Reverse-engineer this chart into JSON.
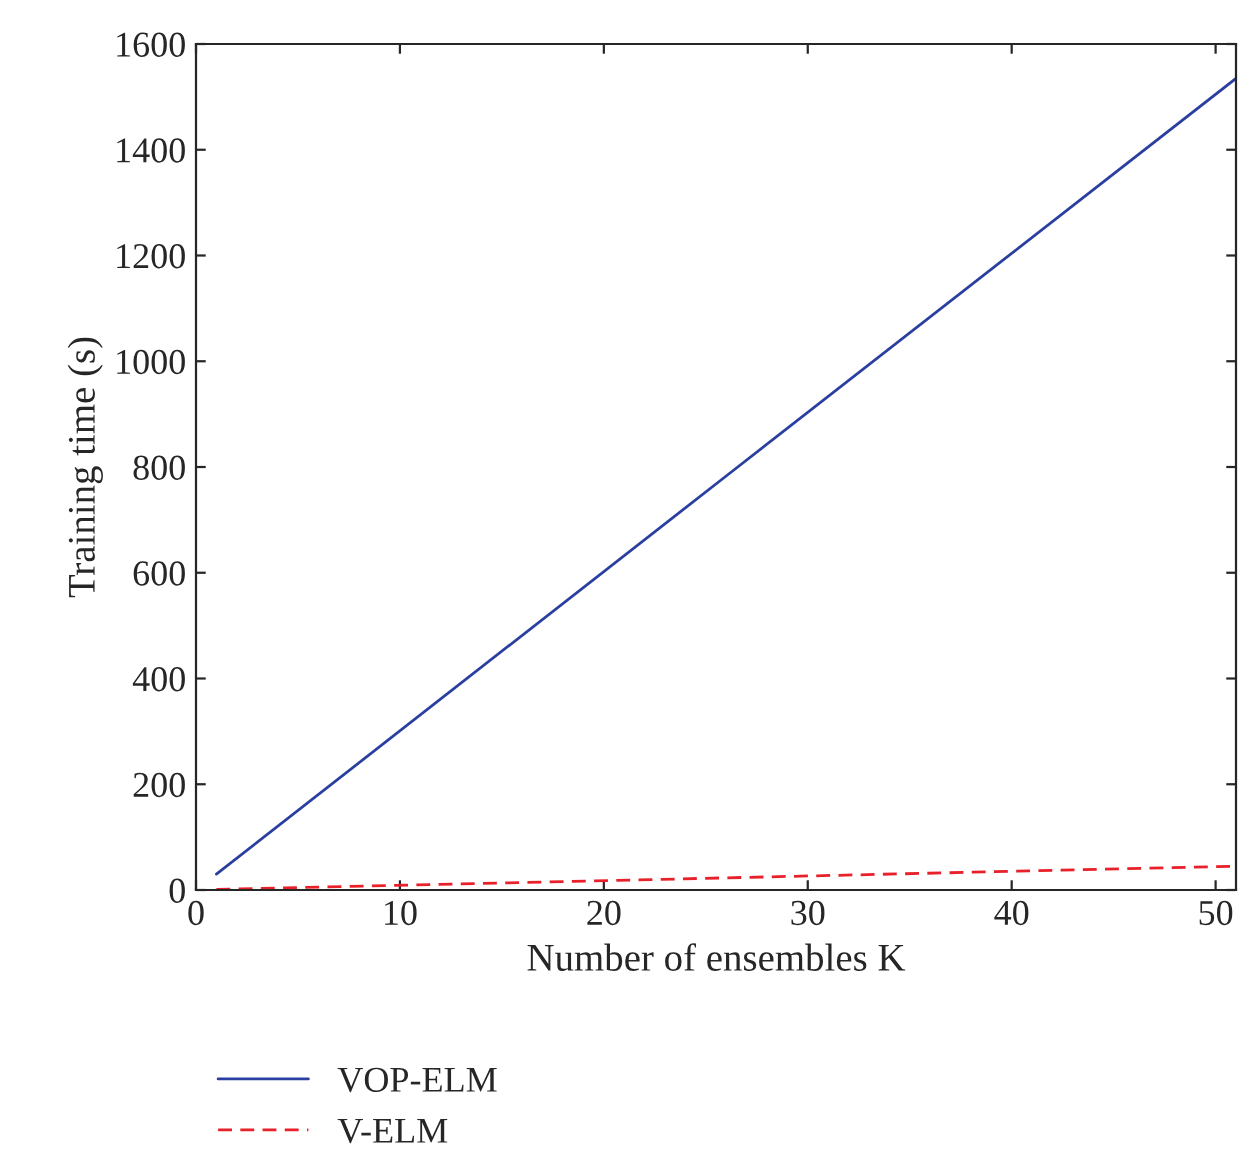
{
  "chart_data": {
    "type": "line",
    "xlabel": "Number of ensembles K",
    "ylabel": "Training time (s)",
    "series": [
      {
        "name": "VOP-ELM",
        "color": "#2b3fa0",
        "line_style": "solid",
        "x": [
          1,
          26,
          51
        ],
        "values": [
          30,
          783,
          1535
        ]
      },
      {
        "name": "V-ELM",
        "color": "#e8202a",
        "line_style": "dashed",
        "x": [
          1,
          26,
          51
        ],
        "values": [
          1,
          23,
          45
        ]
      }
    ],
    "xlim": [
      0,
      51
    ],
    "xticks": [
      0,
      10,
      20,
      30,
      40,
      50
    ],
    "ylim": [
      0,
      1600
    ],
    "yticks": [
      0,
      200,
      400,
      600,
      800,
      1000,
      1200,
      1400,
      1600
    ],
    "grid": false,
    "legend": "bottom",
    "marker": "none"
  }
}
